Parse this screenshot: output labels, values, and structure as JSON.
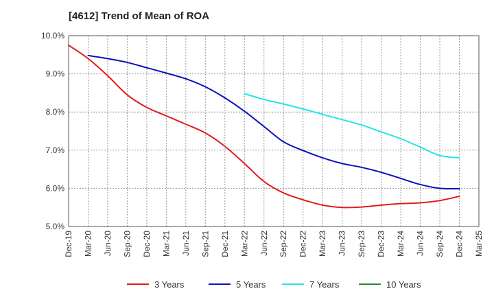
{
  "chart_data": {
    "type": "line",
    "title": "[4612]  Trend of Mean of ROA",
    "xlabel": "",
    "ylabel": "",
    "ylim": [
      5.0,
      10.0
    ],
    "yticks": [
      5.0,
      6.0,
      7.0,
      8.0,
      9.0,
      10.0
    ],
    "ytick_labels": [
      "5.0%",
      "6.0%",
      "7.0%",
      "8.0%",
      "9.0%",
      "10.0%"
    ],
    "x_categories": [
      "Dec-19",
      "Mar-20",
      "Jun-20",
      "Sep-20",
      "Dec-20",
      "Mar-21",
      "Jun-21",
      "Sep-21",
      "Dec-21",
      "Mar-22",
      "Jun-22",
      "Sep-22",
      "Dec-22",
      "Mar-23",
      "Jun-23",
      "Sep-23",
      "Dec-23",
      "Mar-24",
      "Jun-24",
      "Sep-24",
      "Dec-24",
      "Mar-25"
    ],
    "grid": true,
    "legend_position": "bottom",
    "series": [
      {
        "name": "3 Years",
        "color": "#e31a1c",
        "start_index": 0,
        "values": [
          9.75,
          9.4,
          8.95,
          8.45,
          8.12,
          7.9,
          7.68,
          7.45,
          7.1,
          6.65,
          6.18,
          5.88,
          5.7,
          5.56,
          5.5,
          5.51,
          5.56,
          5.6,
          5.62,
          5.68,
          5.79
        ]
      },
      {
        "name": "5 Years",
        "color": "#0a12b8",
        "start_index": 1,
        "values": [
          9.48,
          9.4,
          9.3,
          9.16,
          9.02,
          8.87,
          8.66,
          8.37,
          8.02,
          7.62,
          7.22,
          6.99,
          6.8,
          6.65,
          6.55,
          6.42,
          6.26,
          6.1,
          6.0,
          5.99
        ]
      },
      {
        "name": "7 Years",
        "color": "#22e5e8",
        "start_index": 9,
        "values": [
          8.48,
          8.33,
          8.21,
          8.08,
          7.94,
          7.8,
          7.66,
          7.48,
          7.3,
          7.08,
          6.86,
          6.8
        ]
      },
      {
        "name": "10 Years",
        "color": "#2a8a2a",
        "start_index": 0,
        "values": []
      }
    ]
  }
}
